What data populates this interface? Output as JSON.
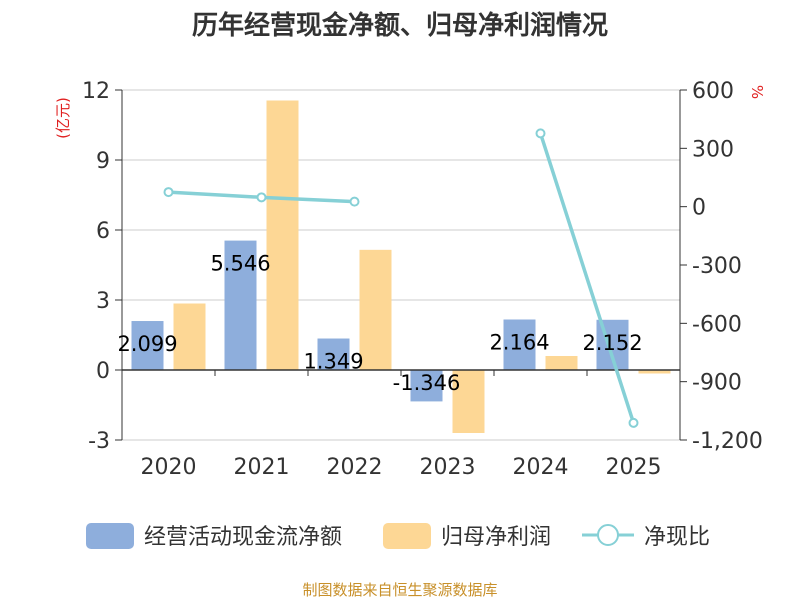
{
  "chart_data": {
    "type": "bar",
    "title": "历年经营现金净额、归母净利润情况",
    "categories": [
      "2020",
      "2021",
      "2022",
      "2023",
      "2024",
      "2025"
    ],
    "series": [
      {
        "name": "经营活动现金流净额",
        "axis": "left",
        "kind": "bar",
        "color": "#8eaedc",
        "values": [
          2.099,
          5.546,
          1.349,
          -1.346,
          2.164,
          2.152
        ],
        "labels": [
          "2.099",
          "5.546",
          "1.349",
          "-1.346",
          "2.164",
          "2.152"
        ]
      },
      {
        "name": "归母净利润",
        "axis": "left",
        "kind": "bar",
        "color": "#fdd795",
        "values": [
          2.85,
          11.55,
          5.15,
          -2.7,
          0.6,
          -0.15
        ]
      },
      {
        "name": "净现比",
        "axis": "right",
        "kind": "line",
        "color": "#86d0d6",
        "values": [
          75,
          48,
          26,
          null,
          377,
          -1112
        ]
      }
    ],
    "y_left": {
      "label": "(亿元)",
      "ylim": [
        -3,
        12
      ],
      "ticks": [
        -3,
        0,
        3,
        6,
        9,
        12
      ],
      "tick_labels": [
        "-3",
        "0",
        "3",
        "6",
        "9",
        "12"
      ]
    },
    "y_right": {
      "label": "%",
      "ylim": [
        -1200,
        600
      ],
      "ticks": [
        -1200,
        -900,
        -600,
        -300,
        0,
        300,
        600
      ],
      "tick_labels": [
        "-1,200",
        "-900",
        "-600",
        "-300",
        "0",
        "300",
        "600"
      ]
    },
    "grid": true,
    "legend_position": "bottom",
    "source": "制图数据来自恒生聚源数据库"
  }
}
